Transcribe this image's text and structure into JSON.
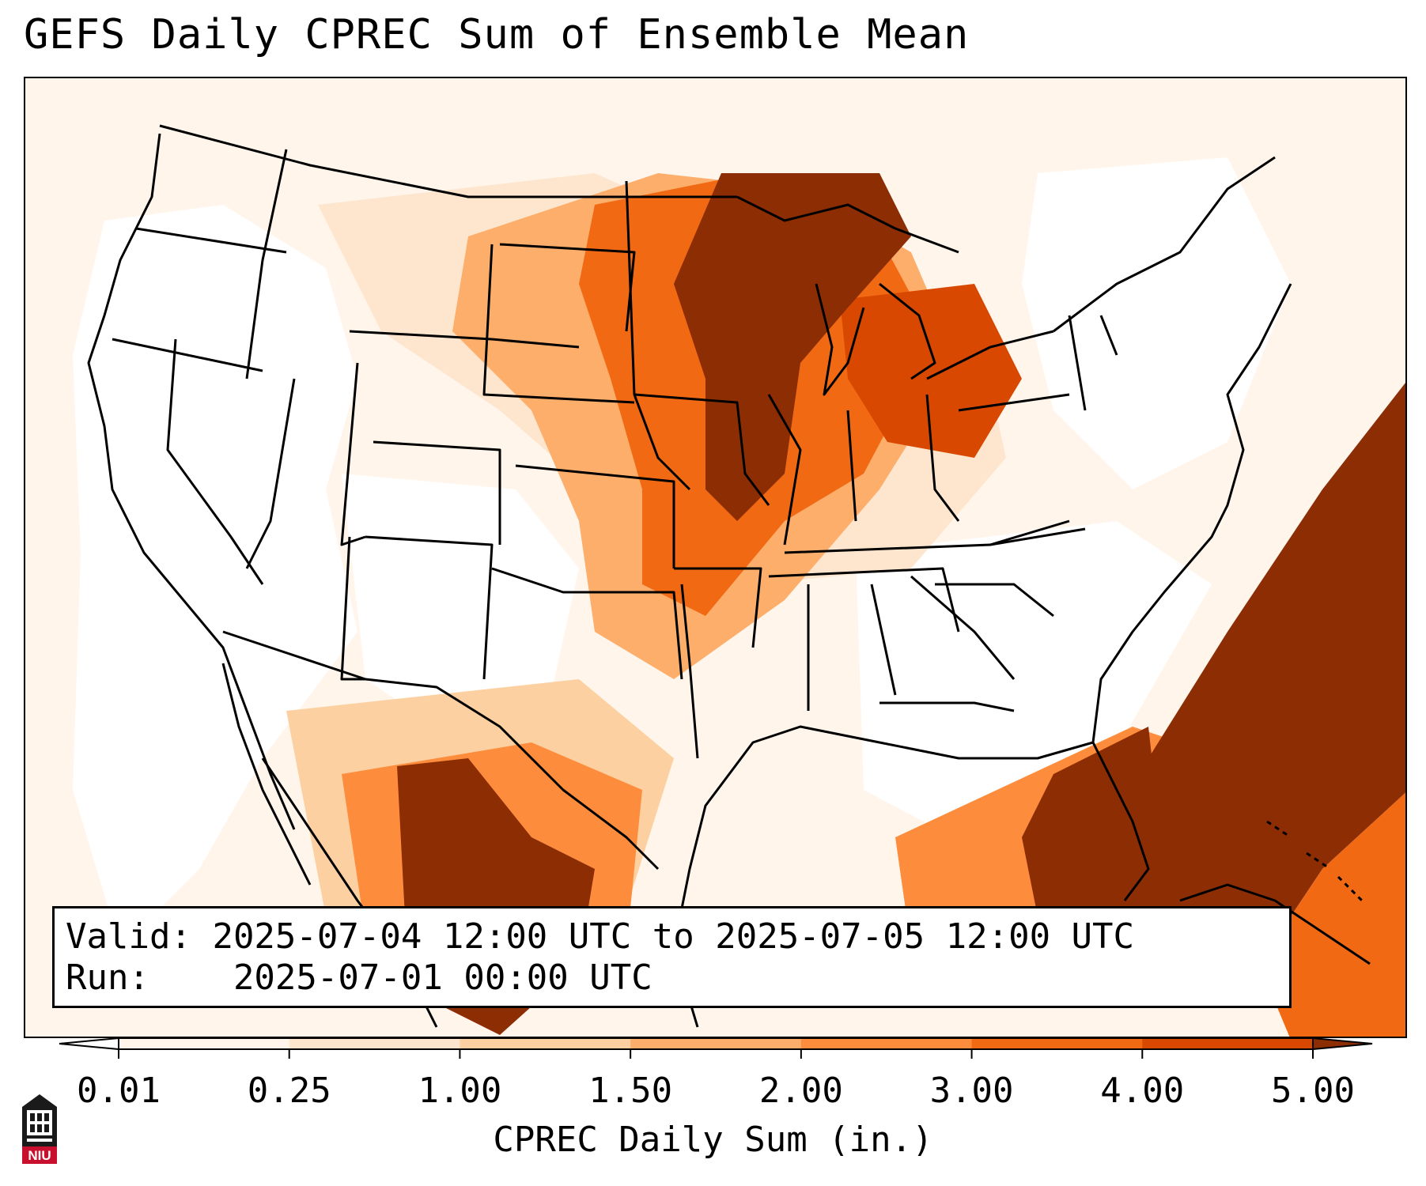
{
  "title": "GEFS Daily CPREC Sum of Ensemble Mean",
  "info": {
    "valid_label": "Valid:",
    "valid_text": "2025-07-04 12:00 UTC to 2025-07-05 12:00 UTC",
    "run_label": "Run:",
    "run_text": "2025-07-01 00:00 UTC"
  },
  "colorbar": {
    "label": "CPREC Daily Sum (in.)",
    "ticks": [
      "0.01",
      "0.25",
      "1.00",
      "1.50",
      "2.00",
      "3.00",
      "4.00",
      "5.00"
    ],
    "colors": [
      "#fff5eb",
      "#fee6ce",
      "#fdd0a2",
      "#fdae6b",
      "#fd8d3c",
      "#f16913",
      "#d94801",
      "#8c2d04"
    ],
    "over_color": "#8c2d04",
    "under_color": "#ffffff"
  },
  "logo": {
    "text": "NIU",
    "color": "#c8102e",
    "icon": "university-tower-icon"
  },
  "map_colors": {
    "background": "#ffffff",
    "border": "#000000",
    "water": "#ffffff"
  }
}
